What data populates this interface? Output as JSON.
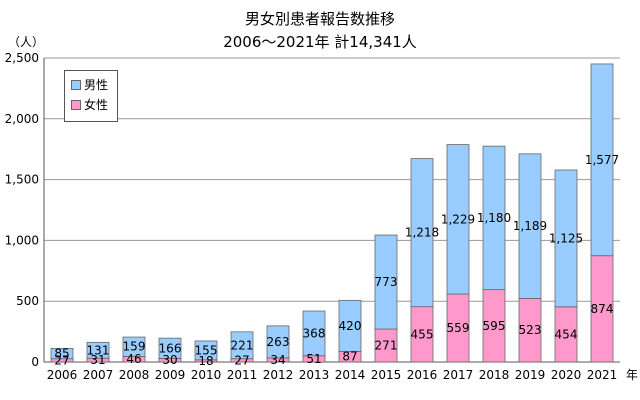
{
  "chart_data": {
    "type": "bar",
    "stacked": true,
    "title": "男女別患者報告数推移",
    "subtitle": "2006～2021年 計14,341人",
    "ylabel": "（人）",
    "x_unit": "年",
    "categories": [
      "2006",
      "2007",
      "2008",
      "2009",
      "2010",
      "2011",
      "2012",
      "2013",
      "2014",
      "2015",
      "2016",
      "2017",
      "2018",
      "2019",
      "2020",
      "2021"
    ],
    "series": [
      {
        "name": "女性",
        "color": "#ff99cc",
        "values": [
          27,
          31,
          46,
          30,
          18,
          27,
          34,
          51,
          87,
          271,
          455,
          559,
          595,
          523,
          454,
          874
        ]
      },
      {
        "name": "男性",
        "color": "#99ccff",
        "values": [
          85,
          131,
          159,
          166,
          155,
          221,
          263,
          368,
          420,
          773,
          1218,
          1229,
          1180,
          1189,
          1125,
          1577
        ]
      }
    ],
    "ylim": [
      0,
      2500
    ],
    "yticks": [
      0,
      500,
      1000,
      1500,
      2000,
      2500
    ],
    "ytick_labels": [
      "0",
      "500",
      "1,000",
      "1,500",
      "2,000",
      "2,500"
    ],
    "legend_position": "top-left",
    "grid": true
  }
}
